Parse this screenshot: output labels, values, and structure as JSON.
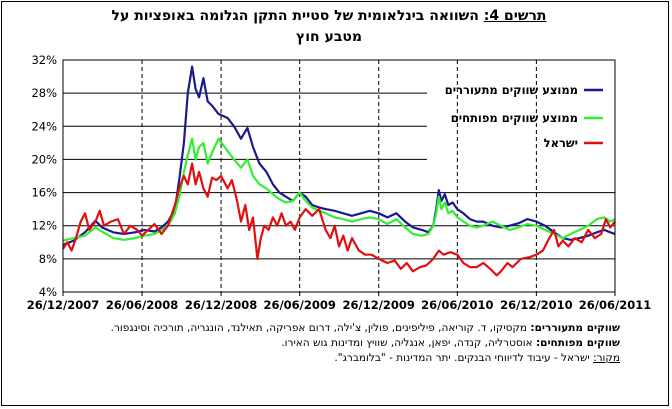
{
  "title": {
    "label": "תרשים 4:",
    "text": "השוואה בינלאומית של סטיית התקן הגלומה באופציות על",
    "line2": "מטבע חוץ"
  },
  "colors": {
    "emerging": "#1a1a8c",
    "developed": "#33ee33",
    "israel": "#e01010",
    "grid": "#000000"
  },
  "chart_data": {
    "type": "line",
    "x_start": "2007-12-26",
    "x_end": "2011-06-26",
    "xticks": [
      "26/12/2007",
      "26/06/2008",
      "26/12/2008",
      "26/06/2009",
      "26/12/2009",
      "26/06/2010",
      "26/12/2010",
      "26/06/2011"
    ],
    "yticks": [
      "4%",
      "8%",
      "12%",
      "16%",
      "20%",
      "24%",
      "28%",
      "32%"
    ],
    "ylim": [
      4,
      32
    ],
    "grid": "horizontal solid, vertical dashed",
    "legend_position": "top-right",
    "series": [
      {
        "name": "ממוצע שווקים מתעוררים",
        "color": "#1a1a8c",
        "points": [
          [
            "2007-12-26",
            9.7
          ],
          [
            "2008-01-20",
            10.2
          ],
          [
            "2008-02-15",
            11.2
          ],
          [
            "2008-03-10",
            12.6
          ],
          [
            "2008-03-25",
            11.8
          ],
          [
            "2008-04-20",
            11.2
          ],
          [
            "2008-05-15",
            11.0
          ],
          [
            "2008-06-10",
            11.2
          ],
          [
            "2008-07-01",
            11.5
          ],
          [
            "2008-07-25",
            11.3
          ],
          [
            "2008-08-10",
            11.8
          ],
          [
            "2008-08-25",
            12.5
          ],
          [
            "2008-09-10",
            14.0
          ],
          [
            "2008-09-20",
            17.5
          ],
          [
            "2008-10-01",
            22.0
          ],
          [
            "2008-10-10",
            28.0
          ],
          [
            "2008-10-20",
            31.2
          ],
          [
            "2008-10-28",
            28.5
          ],
          [
            "2008-11-05",
            27.5
          ],
          [
            "2008-11-15",
            29.8
          ],
          [
            "2008-11-25",
            27.0
          ],
          [
            "2008-12-05",
            26.5
          ],
          [
            "2008-12-20",
            25.5
          ],
          [
            "2009-01-10",
            25.0
          ],
          [
            "2009-01-25",
            24.0
          ],
          [
            "2009-02-10",
            22.5
          ],
          [
            "2009-02-25",
            23.8
          ],
          [
            "2009-03-10",
            21.5
          ],
          [
            "2009-03-25",
            19.5
          ],
          [
            "2009-04-10",
            18.5
          ],
          [
            "2009-04-25",
            17.0
          ],
          [
            "2009-05-10",
            16.0
          ],
          [
            "2009-05-25",
            15.5
          ],
          [
            "2009-06-10",
            15.0
          ],
          [
            "2009-06-26",
            16.0
          ],
          [
            "2009-07-10",
            15.5
          ],
          [
            "2009-07-25",
            14.5
          ],
          [
            "2009-08-10",
            14.2
          ],
          [
            "2009-08-25",
            14.0
          ],
          [
            "2009-09-15",
            13.8
          ],
          [
            "2009-10-05",
            13.5
          ],
          [
            "2009-10-25",
            13.2
          ],
          [
            "2009-11-15",
            13.5
          ],
          [
            "2009-12-05",
            13.8
          ],
          [
            "2009-12-26",
            13.5
          ],
          [
            "2010-01-15",
            13.0
          ],
          [
            "2010-02-05",
            13.5
          ],
          [
            "2010-02-25",
            12.5
          ],
          [
            "2010-03-15",
            11.8
          ],
          [
            "2010-04-05",
            11.5
          ],
          [
            "2010-04-20",
            11.2
          ],
          [
            "2010-05-01",
            12.0
          ],
          [
            "2010-05-08",
            14.0
          ],
          [
            "2010-05-14",
            16.3
          ],
          [
            "2010-05-20",
            15.0
          ],
          [
            "2010-05-28",
            15.8
          ],
          [
            "2010-06-05",
            14.5
          ],
          [
            "2010-06-15",
            14.8
          ],
          [
            "2010-06-26",
            14.0
          ],
          [
            "2010-07-10",
            13.5
          ],
          [
            "2010-07-25",
            12.8
          ],
          [
            "2010-08-10",
            12.5
          ],
          [
            "2010-08-25",
            12.5
          ],
          [
            "2010-09-15",
            12.0
          ],
          [
            "2010-10-05",
            11.8
          ],
          [
            "2010-10-25",
            12.0
          ],
          [
            "2010-11-15",
            12.3
          ],
          [
            "2010-12-05",
            12.8
          ],
          [
            "2010-12-26",
            12.5
          ],
          [
            "2011-01-15",
            12.0
          ],
          [
            "2011-02-05",
            11.2
          ],
          [
            "2011-02-25",
            10.5
          ],
          [
            "2011-03-15",
            10.3
          ],
          [
            "2011-04-05",
            10.5
          ],
          [
            "2011-04-25",
            10.8
          ],
          [
            "2011-05-15",
            11.2
          ],
          [
            "2011-06-01",
            11.5
          ],
          [
            "2011-06-15",
            11.2
          ],
          [
            "2011-06-26",
            11.0
          ]
        ]
      },
      {
        "name": "ממוצע שווקים מפותחים",
        "color": "#33ee33",
        "points": [
          [
            "2007-12-26",
            10.2
          ],
          [
            "2008-01-20",
            10.5
          ],
          [
            "2008-02-15",
            10.8
          ],
          [
            "2008-03-10",
            11.8
          ],
          [
            "2008-03-25",
            11.3
          ],
          [
            "2008-04-20",
            10.5
          ],
          [
            "2008-05-15",
            10.3
          ],
          [
            "2008-06-10",
            10.5
          ],
          [
            "2008-07-01",
            10.8
          ],
          [
            "2008-07-25",
            11.0
          ],
          [
            "2008-08-10",
            11.5
          ],
          [
            "2008-08-25",
            12.0
          ],
          [
            "2008-09-10",
            13.5
          ],
          [
            "2008-09-20",
            15.5
          ],
          [
            "2008-10-01",
            18.5
          ],
          [
            "2008-10-10",
            20.5
          ],
          [
            "2008-10-20",
            22.5
          ],
          [
            "2008-10-28",
            20.0
          ],
          [
            "2008-11-05",
            21.5
          ],
          [
            "2008-11-15",
            22.0
          ],
          [
            "2008-11-25",
            19.5
          ],
          [
            "2008-12-05",
            20.8
          ],
          [
            "2008-12-20",
            22.5
          ],
          [
            "2009-01-10",
            21.0
          ],
          [
            "2009-01-25",
            20.0
          ],
          [
            "2009-02-10",
            19.0
          ],
          [
            "2009-02-25",
            20.0
          ],
          [
            "2009-03-10",
            18.0
          ],
          [
            "2009-03-25",
            17.0
          ],
          [
            "2009-04-10",
            16.5
          ],
          [
            "2009-04-25",
            15.8
          ],
          [
            "2009-05-10",
            15.2
          ],
          [
            "2009-05-25",
            14.8
          ],
          [
            "2009-06-10",
            15.0
          ],
          [
            "2009-06-26",
            16.0
          ],
          [
            "2009-07-10",
            15.0
          ],
          [
            "2009-07-25",
            14.2
          ],
          [
            "2009-08-10",
            13.8
          ],
          [
            "2009-08-25",
            13.5
          ],
          [
            "2009-09-15",
            13.0
          ],
          [
            "2009-10-05",
            12.8
          ],
          [
            "2009-10-25",
            12.5
          ],
          [
            "2009-11-15",
            12.8
          ],
          [
            "2009-12-05",
            13.0
          ],
          [
            "2009-12-26",
            12.8
          ],
          [
            "2010-01-15",
            12.2
          ],
          [
            "2010-02-05",
            12.8
          ],
          [
            "2010-02-25",
            11.8
          ],
          [
            "2010-03-15",
            11.0
          ],
          [
            "2010-04-05",
            10.8
          ],
          [
            "2010-04-20",
            11.0
          ],
          [
            "2010-05-01",
            12.0
          ],
          [
            "2010-05-08",
            13.5
          ],
          [
            "2010-05-14",
            15.5
          ],
          [
            "2010-05-20",
            14.0
          ],
          [
            "2010-05-28",
            14.8
          ],
          [
            "2010-06-05",
            13.5
          ],
          [
            "2010-06-15",
            13.8
          ],
          [
            "2010-06-26",
            13.0
          ],
          [
            "2010-07-10",
            12.5
          ],
          [
            "2010-07-25",
            12.0
          ],
          [
            "2010-08-10",
            11.8
          ],
          [
            "2010-08-25",
            12.0
          ],
          [
            "2010-09-15",
            12.5
          ],
          [
            "2010-10-05",
            12.0
          ],
          [
            "2010-10-25",
            11.5
          ],
          [
            "2010-11-15",
            11.8
          ],
          [
            "2010-12-05",
            12.2
          ],
          [
            "2010-12-26",
            12.0
          ],
          [
            "2011-01-15",
            11.5
          ],
          [
            "2011-02-05",
            11.0
          ],
          [
            "2011-02-25",
            10.5
          ],
          [
            "2011-03-15",
            11.0
          ],
          [
            "2011-04-05",
            11.5
          ],
          [
            "2011-04-25",
            12.0
          ],
          [
            "2011-05-15",
            12.8
          ],
          [
            "2011-06-01",
            13.0
          ],
          [
            "2011-06-15",
            12.5
          ],
          [
            "2011-06-26",
            12.8
          ]
        ]
      },
      {
        "name": "ישראל",
        "color": "#e01010",
        "points": [
          [
            "2007-12-26",
            9.2
          ],
          [
            "2008-01-05",
            10.0
          ],
          [
            "2008-01-15",
            9.0
          ],
          [
            "2008-01-25",
            10.5
          ],
          [
            "2008-02-05",
            12.5
          ],
          [
            "2008-02-15",
            13.5
          ],
          [
            "2008-02-25",
            11.5
          ],
          [
            "2008-03-10",
            12.5
          ],
          [
            "2008-03-20",
            13.8
          ],
          [
            "2008-03-30",
            12.0
          ],
          [
            "2008-04-15",
            12.5
          ],
          [
            "2008-05-01",
            12.8
          ],
          [
            "2008-05-15",
            11.0
          ],
          [
            "2008-05-30",
            12.0
          ],
          [
            "2008-06-15",
            11.5
          ],
          [
            "2008-06-26",
            10.8
          ],
          [
            "2008-07-10",
            11.5
          ],
          [
            "2008-07-25",
            12.2
          ],
          [
            "2008-08-10",
            11.0
          ],
          [
            "2008-08-25",
            12.0
          ],
          [
            "2008-09-10",
            14.5
          ],
          [
            "2008-09-20",
            16.5
          ],
          [
            "2008-10-01",
            18.0
          ],
          [
            "2008-10-10",
            17.0
          ],
          [
            "2008-10-20",
            19.5
          ],
          [
            "2008-10-28",
            17.0
          ],
          [
            "2008-11-05",
            18.5
          ],
          [
            "2008-11-15",
            16.5
          ],
          [
            "2008-11-25",
            15.5
          ],
          [
            "2008-12-05",
            17.8
          ],
          [
            "2008-12-15",
            17.5
          ],
          [
            "2008-12-26",
            18.0
          ],
          [
            "2009-01-10",
            16.5
          ],
          [
            "2009-01-20",
            17.5
          ],
          [
            "2009-02-01",
            15.0
          ],
          [
            "2009-02-10",
            12.5
          ],
          [
            "2009-02-20",
            14.5
          ],
          [
            "2009-03-01",
            11.5
          ],
          [
            "2009-03-10",
            13.0
          ],
          [
            "2009-03-15",
            10.5
          ],
          [
            "2009-03-20",
            8.0
          ],
          [
            "2009-03-28",
            10.5
          ],
          [
            "2009-04-05",
            12.0
          ],
          [
            "2009-04-15",
            11.5
          ],
          [
            "2009-04-25",
            13.0
          ],
          [
            "2009-05-05",
            12.0
          ],
          [
            "2009-05-15",
            13.5
          ],
          [
            "2009-05-25",
            12.0
          ],
          [
            "2009-06-05",
            12.5
          ],
          [
            "2009-06-15",
            11.5
          ],
          [
            "2009-06-26",
            13.0
          ],
          [
            "2009-07-10",
            14.0
          ],
          [
            "2009-07-25",
            13.2
          ],
          [
            "2009-08-10",
            14.0
          ],
          [
            "2009-08-25",
            11.5
          ],
          [
            "2009-09-05",
            10.5
          ],
          [
            "2009-09-15",
            12.0
          ],
          [
            "2009-09-25",
            9.5
          ],
          [
            "2009-10-05",
            10.8
          ],
          [
            "2009-10-15",
            9.0
          ],
          [
            "2009-10-25",
            10.5
          ],
          [
            "2009-11-10",
            9.0
          ],
          [
            "2009-11-25",
            8.5
          ],
          [
            "2009-12-10",
            8.5
          ],
          [
            "2009-12-26",
            8.0
          ],
          [
            "2010-01-15",
            7.5
          ],
          [
            "2010-02-01",
            7.8
          ],
          [
            "2010-02-15",
            6.8
          ],
          [
            "2010-03-01",
            7.5
          ],
          [
            "2010-03-15",
            6.5
          ],
          [
            "2010-04-01",
            7.0
          ],
          [
            "2010-04-15",
            7.2
          ],
          [
            "2010-05-01",
            8.0
          ],
          [
            "2010-05-14",
            9.0
          ],
          [
            "2010-05-25",
            8.5
          ],
          [
            "2010-06-10",
            8.8
          ],
          [
            "2010-06-26",
            8.5
          ],
          [
            "2010-07-10",
            7.5
          ],
          [
            "2010-07-25",
            7.0
          ],
          [
            "2010-08-10",
            7.0
          ],
          [
            "2010-08-25",
            7.5
          ],
          [
            "2010-09-10",
            6.8
          ],
          [
            "2010-09-25",
            6.0
          ],
          [
            "2010-10-05",
            6.5
          ],
          [
            "2010-10-20",
            7.5
          ],
          [
            "2010-11-01",
            7.0
          ],
          [
            "2010-11-20",
            8.0
          ],
          [
            "2010-12-10",
            8.2
          ],
          [
            "2010-12-26",
            8.5
          ],
          [
            "2011-01-10",
            9.0
          ],
          [
            "2011-01-25",
            10.5
          ],
          [
            "2011-02-05",
            11.5
          ],
          [
            "2011-02-15",
            9.5
          ],
          [
            "2011-02-25",
            10.2
          ],
          [
            "2011-03-10",
            9.5
          ],
          [
            "2011-03-25",
            10.5
          ],
          [
            "2011-04-10",
            10.0
          ],
          [
            "2011-04-25",
            11.5
          ],
          [
            "2011-05-10",
            10.5
          ],
          [
            "2011-05-25",
            11.0
          ],
          [
            "2011-06-05",
            12.8
          ],
          [
            "2011-06-15",
            11.8
          ],
          [
            "2011-06-26",
            12.5
          ]
        ]
      }
    ]
  },
  "notes": {
    "emerging_label": "שווקים מתעוררים:",
    "emerging_text": "מקסיקו, ד. קוריאה, פיליפינים, פולין, צ'ילה, דרום אפריקה, תאילנד, הונגריה, תורכיה וסינגפור.",
    "developed_label": "שווקים מפותחים:",
    "developed_text": "אוסטרליה, קנדה, יפאן, אנגליה, שוויץ ומדינות גוש האירו.",
    "source_label": "מקור:",
    "source_text": "ישראל - עיבוד לדיווחי הבנקים. יתר המדינות - \"בלומברג\"."
  }
}
